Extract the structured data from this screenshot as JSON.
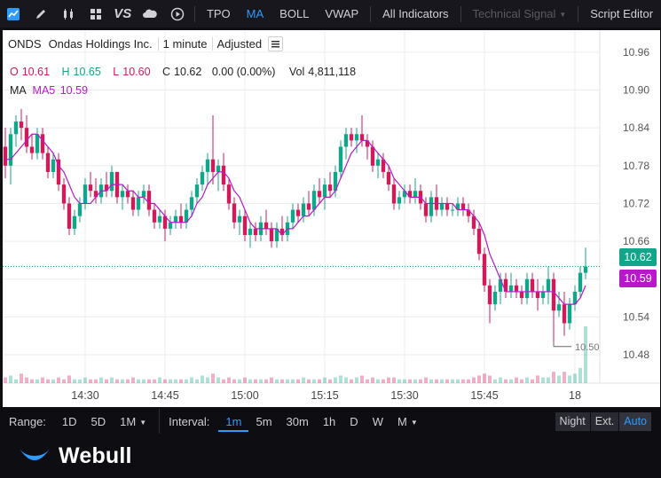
{
  "toolbar": {
    "icons": [
      "chart-style-icon",
      "draw-pencil-icon",
      "candle-icon",
      "grid-layout-icon",
      "compare-icon",
      "cloud-icon",
      "replay-icon"
    ],
    "compare_label": "VS",
    "indicators": [
      "TPO",
      "MA",
      "BOLL",
      "VWAP"
    ],
    "active_indicator": "MA",
    "all_indicators_label": "All Indicators",
    "technical_signal_label": "Technical Signal",
    "script_editor_label": "Script Editor"
  },
  "header": {
    "symbol": "ONDS",
    "company": "Ondas Holdings Inc.",
    "interval": "1 minute",
    "adjusted": "Adjusted"
  },
  "ohlc": {
    "o_label": "O",
    "o_value": "10.61",
    "h_label": "H",
    "h_value": "10.65",
    "l_label": "L",
    "l_value": "10.60",
    "c_label": "C",
    "c_value": "10.62",
    "change": "0.00 (0.00%)",
    "vol_label": "Vol",
    "vol_value": "4,811,118"
  },
  "ma": {
    "label": "MA",
    "ma5_label": "MA5",
    "ma5_value": "10.59"
  },
  "price_tags": {
    "last": "10.62",
    "ma5": "10.59",
    "low_marker": "10.50"
  },
  "colors": {
    "up": "#13a58a",
    "down": "#d01b5b",
    "ma": "#b719c9",
    "accent": "#2f9bff",
    "last_tag": "#13a58a",
    "ma_tag": "#b719c9"
  },
  "chart_data": {
    "type": "candlestick",
    "interval": "1m",
    "ylim": [
      10.435,
      10.995
    ],
    "y_ticks": [
      "10.96",
      "10.90",
      "10.84",
      "10.78",
      "10.72",
      "10.66",
      "10.60",
      "10.54",
      "10.48"
    ],
    "x_ticks": [
      "14:30",
      "14:45",
      "15:00",
      "15:15",
      "15:30",
      "15:45",
      "18"
    ],
    "series": [
      {
        "name": "ONDS",
        "ohlc": [
          [
            10.81,
            10.84,
            10.76,
            10.78
          ],
          [
            10.78,
            10.84,
            10.75,
            10.83
          ],
          [
            10.83,
            10.86,
            10.81,
            10.85
          ],
          [
            10.85,
            10.87,
            10.82,
            10.84
          ],
          [
            10.84,
            10.86,
            10.8,
            10.81
          ],
          [
            10.81,
            10.83,
            10.79,
            10.8
          ],
          [
            10.8,
            10.84,
            10.79,
            10.83
          ],
          [
            10.83,
            10.84,
            10.79,
            10.8
          ],
          [
            10.8,
            10.81,
            10.76,
            10.77
          ],
          [
            10.77,
            10.8,
            10.76,
            10.79
          ],
          [
            10.79,
            10.8,
            10.74,
            10.75
          ],
          [
            10.75,
            10.76,
            10.71,
            10.72
          ],
          [
            10.72,
            10.73,
            10.67,
            10.68
          ],
          [
            10.68,
            10.71,
            10.67,
            10.7
          ],
          [
            10.7,
            10.73,
            10.69,
            10.72
          ],
          [
            10.72,
            10.76,
            10.71,
            10.75
          ],
          [
            10.75,
            10.77,
            10.73,
            10.74
          ],
          [
            10.74,
            10.76,
            10.72,
            10.73
          ],
          [
            10.73,
            10.76,
            10.72,
            10.75
          ],
          [
            10.75,
            10.77,
            10.73,
            10.74
          ],
          [
            10.74,
            10.78,
            10.73,
            10.77
          ],
          [
            10.77,
            10.77,
            10.72,
            10.73
          ],
          [
            10.73,
            10.75,
            10.71,
            10.74
          ],
          [
            10.74,
            10.75,
            10.72,
            10.73
          ],
          [
            10.73,
            10.74,
            10.7,
            10.71
          ],
          [
            10.71,
            10.74,
            10.7,
            10.73
          ],
          [
            10.73,
            10.75,
            10.72,
            10.74
          ],
          [
            10.74,
            10.75,
            10.7,
            10.71
          ],
          [
            10.71,
            10.72,
            10.68,
            10.69
          ],
          [
            10.69,
            10.71,
            10.68,
            10.7
          ],
          [
            10.7,
            10.71,
            10.66,
            10.68
          ],
          [
            10.68,
            10.7,
            10.67,
            10.69
          ],
          [
            10.69,
            10.71,
            10.68,
            10.7
          ],
          [
            10.7,
            10.72,
            10.68,
            10.69
          ],
          [
            10.69,
            10.72,
            10.68,
            10.71
          ],
          [
            10.71,
            10.74,
            10.7,
            10.73
          ],
          [
            10.73,
            10.76,
            10.72,
            10.75
          ],
          [
            10.75,
            10.78,
            10.74,
            10.77
          ],
          [
            10.77,
            10.8,
            10.75,
            10.79
          ],
          [
            10.79,
            10.86,
            10.75,
            10.77
          ],
          [
            10.77,
            10.79,
            10.74,
            10.78
          ],
          [
            10.78,
            10.8,
            10.74,
            10.75
          ],
          [
            10.75,
            10.76,
            10.71,
            10.72
          ],
          [
            10.72,
            10.73,
            10.68,
            10.69
          ],
          [
            10.69,
            10.71,
            10.67,
            10.7
          ],
          [
            10.7,
            10.71,
            10.66,
            10.67
          ],
          [
            10.67,
            10.69,
            10.65,
            10.68
          ],
          [
            10.68,
            10.69,
            10.66,
            10.67
          ],
          [
            10.67,
            10.7,
            10.66,
            10.69
          ],
          [
            10.69,
            10.71,
            10.67,
            10.68
          ],
          [
            10.68,
            10.69,
            10.65,
            10.66
          ],
          [
            10.66,
            10.69,
            10.65,
            10.68
          ],
          [
            10.68,
            10.7,
            10.66,
            10.67
          ],
          [
            10.67,
            10.7,
            10.66,
            10.69
          ],
          [
            10.69,
            10.72,
            10.68,
            10.71
          ],
          [
            10.71,
            10.72,
            10.69,
            10.7
          ],
          [
            10.7,
            10.73,
            10.69,
            10.72
          ],
          [
            10.72,
            10.74,
            10.7,
            10.71
          ],
          [
            10.71,
            10.75,
            10.7,
            10.74
          ],
          [
            10.74,
            10.76,
            10.72,
            10.73
          ],
          [
            10.73,
            10.76,
            10.71,
            10.75
          ],
          [
            10.75,
            10.77,
            10.73,
            10.74
          ],
          [
            10.74,
            10.78,
            10.73,
            10.77
          ],
          [
            10.77,
            10.82,
            10.76,
            10.81
          ],
          [
            10.81,
            10.84,
            10.79,
            10.83
          ],
          [
            10.83,
            10.84,
            10.81,
            10.82
          ],
          [
            10.82,
            10.84,
            10.8,
            10.83
          ],
          [
            10.83,
            10.86,
            10.81,
            10.82
          ],
          [
            10.82,
            10.83,
            10.79,
            10.81
          ],
          [
            10.81,
            10.82,
            10.77,
            10.78
          ],
          [
            10.78,
            10.8,
            10.76,
            10.79
          ],
          [
            10.79,
            10.8,
            10.76,
            10.77
          ],
          [
            10.77,
            10.78,
            10.74,
            10.75
          ],
          [
            10.75,
            10.76,
            10.71,
            10.72
          ],
          [
            10.72,
            10.74,
            10.71,
            10.73
          ],
          [
            10.73,
            10.75,
            10.72,
            10.74
          ],
          [
            10.74,
            10.75,
            10.72,
            10.73
          ],
          [
            10.73,
            10.76,
            10.72,
            10.74
          ],
          [
            10.74,
            10.75,
            10.71,
            10.72
          ],
          [
            10.72,
            10.73,
            10.69,
            10.7
          ],
          [
            10.7,
            10.74,
            10.69,
            10.73
          ],
          [
            10.73,
            10.75,
            10.7,
            10.71
          ],
          [
            10.71,
            10.73,
            10.7,
            10.72
          ],
          [
            10.72,
            10.73,
            10.7,
            10.71
          ],
          [
            10.71,
            10.72,
            10.7,
            10.71
          ],
          [
            10.71,
            10.73,
            10.7,
            10.72
          ],
          [
            10.72,
            10.73,
            10.7,
            10.71
          ],
          [
            10.71,
            10.72,
            10.69,
            10.7
          ],
          [
            10.7,
            10.71,
            10.67,
            10.68
          ],
          [
            10.68,
            10.69,
            10.63,
            10.64
          ],
          [
            10.64,
            10.65,
            10.58,
            10.59
          ],
          [
            10.59,
            10.6,
            10.53,
            10.56
          ],
          [
            10.56,
            10.59,
            10.55,
            10.58
          ],
          [
            10.58,
            10.61,
            10.56,
            10.6
          ],
          [
            10.6,
            10.61,
            10.57,
            10.58
          ],
          [
            10.58,
            10.61,
            10.57,
            10.59
          ],
          [
            10.59,
            10.6,
            10.57,
            10.58
          ],
          [
            10.58,
            10.59,
            10.56,
            10.57
          ],
          [
            10.57,
            10.61,
            10.56,
            10.6
          ],
          [
            10.6,
            10.61,
            10.57,
            10.58
          ],
          [
            10.58,
            10.6,
            10.55,
            10.57
          ],
          [
            10.57,
            10.59,
            10.56,
            10.58
          ],
          [
            10.58,
            10.62,
            10.56,
            10.6
          ],
          [
            10.6,
            10.61,
            10.5,
            10.55
          ],
          [
            10.55,
            10.58,
            10.54,
            10.56
          ],
          [
            10.56,
            10.58,
            10.51,
            10.53
          ],
          [
            10.53,
            10.57,
            10.52,
            10.56
          ],
          [
            10.56,
            10.59,
            10.55,
            10.58
          ],
          [
            10.58,
            10.62,
            10.57,
            10.61
          ],
          [
            10.61,
            10.65,
            10.6,
            10.62
          ]
        ]
      },
      {
        "name": "MA5",
        "values": [
          10.79,
          10.79,
          10.8,
          10.81,
          10.82,
          10.83,
          10.83,
          10.82,
          10.81,
          10.8,
          10.78,
          10.77,
          10.75,
          10.73,
          10.72,
          10.72,
          10.72,
          10.73,
          10.74,
          10.74,
          10.75,
          10.75,
          10.75,
          10.74,
          10.74,
          10.73,
          10.73,
          10.72,
          10.72,
          10.71,
          10.7,
          10.69,
          10.69,
          10.69,
          10.69,
          10.7,
          10.72,
          10.73,
          10.75,
          10.76,
          10.77,
          10.77,
          10.76,
          10.74,
          10.73,
          10.71,
          10.69,
          10.68,
          10.68,
          10.68,
          10.68,
          10.68,
          10.67,
          10.68,
          10.68,
          10.69,
          10.7,
          10.7,
          10.71,
          10.72,
          10.73,
          10.73,
          10.74,
          10.76,
          10.78,
          10.8,
          10.81,
          10.82,
          10.82,
          10.81,
          10.8,
          10.79,
          10.78,
          10.76,
          10.75,
          10.74,
          10.73,
          10.73,
          10.73,
          10.72,
          10.72,
          10.72,
          10.72,
          10.72,
          10.72,
          10.71,
          10.71,
          10.71,
          10.7,
          10.69,
          10.67,
          10.64,
          10.62,
          10.6,
          10.58,
          10.58,
          10.58,
          10.58,
          10.58,
          10.58,
          10.58,
          10.58,
          10.58,
          10.58,
          10.57,
          10.56,
          10.56,
          10.56,
          10.57,
          10.59
        ]
      }
    ],
    "volume": [
      3,
      4,
      2,
      5,
      3,
      2,
      2,
      3,
      2,
      2,
      3,
      2,
      4,
      2,
      2,
      3,
      2,
      2,
      3,
      2,
      3,
      2,
      2,
      2,
      3,
      2,
      2,
      2,
      2,
      3,
      2,
      2,
      2,
      2,
      2,
      3,
      2,
      4,
      3,
      5,
      3,
      2,
      3,
      2,
      2,
      3,
      2,
      2,
      2,
      2,
      3,
      2,
      2,
      2,
      2,
      2,
      3,
      2,
      2,
      2,
      3,
      2,
      3,
      4,
      3,
      2,
      3,
      4,
      2,
      3,
      2,
      2,
      3,
      3,
      2,
      2,
      2,
      2,
      2,
      3,
      2,
      2,
      2,
      2,
      2,
      2,
      2,
      2,
      3,
      4,
      5,
      4,
      2,
      3,
      2,
      2,
      3,
      2,
      3,
      2,
      4,
      3,
      3,
      6,
      4,
      6,
      4,
      5,
      8,
      30
    ]
  },
  "range_bar": {
    "range_label": "Range:",
    "ranges": [
      "1D",
      "5D",
      "1M"
    ],
    "interval_label": "Interval:",
    "intervals": [
      "1m",
      "5m",
      "30m",
      "1h",
      "D",
      "W",
      "M"
    ],
    "active_interval": "1m",
    "session_buttons": [
      "Night",
      "Ext.",
      "Auto"
    ],
    "active_session": "Auto"
  },
  "logo": {
    "text": "Webull"
  }
}
